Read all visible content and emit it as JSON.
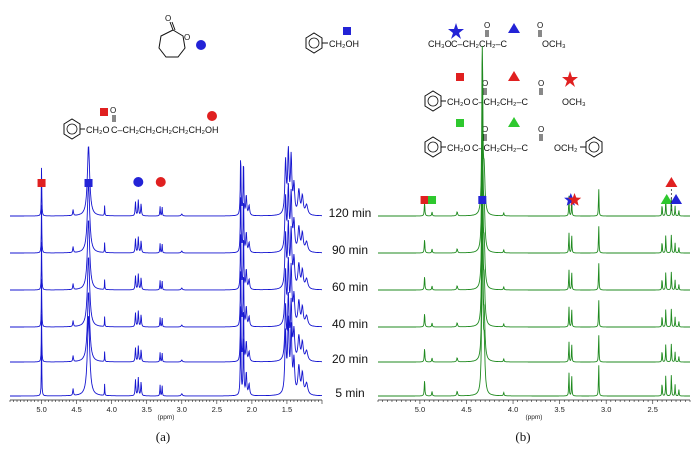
{
  "chart_data": [
    {
      "type": "line",
      "panel_label": "(a)",
      "xlabel": "ppm",
      "x_reversed": true,
      "xlim": [
        5.45,
        1.0
      ],
      "ticks": [
        "5.0",
        "4.5",
        "4.0",
        "3.5",
        "3.0",
        "2.5",
        "2.0",
        "1.5"
      ],
      "color": "#1515d0",
      "traces": [
        "120 min",
        "90 min",
        "60 min",
        "40 min",
        "20 min",
        "5 min"
      ],
      "peaks": [
        {
          "ppm": 5.0,
          "marker": "red-square"
        },
        {
          "ppm": 4.33,
          "marker": "blue-square"
        },
        {
          "ppm": 3.62,
          "marker": "blue-circle"
        },
        {
          "ppm": 3.3,
          "marker": "red-circle"
        },
        {
          "ppm": 2.13,
          "marker": "none"
        },
        {
          "ppm": 1.46,
          "marker": "none"
        }
      ]
    },
    {
      "type": "line",
      "panel_label": "(b)",
      "xlabel": "ppm",
      "x_reversed": true,
      "xlim": [
        5.45,
        2.1
      ],
      "ticks": [
        "5.0",
        "4.5",
        "4.0",
        "3.5",
        "3.0",
        "2.5"
      ],
      "color": "#1f8a1f",
      "traces": [
        "120 min",
        "90 min",
        "60 min",
        "40 min",
        "20 min",
        "5 min"
      ],
      "peaks": [
        {
          "ppm": 4.95,
          "marker": "red-square"
        },
        {
          "ppm": 4.87,
          "marker": "green-square"
        },
        {
          "ppm": 4.33,
          "marker": "blue-square"
        },
        {
          "ppm": 3.38,
          "marker": "blue-star"
        },
        {
          "ppm": 3.34,
          "marker": "red-star"
        },
        {
          "ppm": 3.08,
          "marker": "none"
        },
        {
          "ppm": 2.3,
          "marker": "red-triangle"
        },
        {
          "ppm": 2.35,
          "marker": "green-triangle"
        },
        {
          "ppm": 2.25,
          "marker": "blue-triangle"
        }
      ]
    }
  ],
  "structures": {
    "top_left_ring_atom": "O",
    "top_left_carbonyl": "O",
    "benzyl_alcohol": "CH₂OH",
    "ester_left": "CH₂O",
    "ester_left_chain": "C–CH₂CH₂CH₂CH₂CH₂OH",
    "dimethyl_left": "CH₃O",
    "dimethyl_mid": "C–CH₂CH₂–C",
    "dimethyl_right": "OCH₃",
    "mixed_left": "CH₂O",
    "mixed_mid": "C–CH₂CH₂–C",
    "mixed_right": "OCH₃",
    "dibenzyl_left": "CH₂O",
    "dibenzyl_mid": "C–CH₂CH₂–C",
    "dibenzyl_right": "OCH₂",
    "carbonyl_o": "O"
  },
  "colors": {
    "red": "#e02020",
    "blue": "#2323d6",
    "green": "#2ec82e"
  }
}
